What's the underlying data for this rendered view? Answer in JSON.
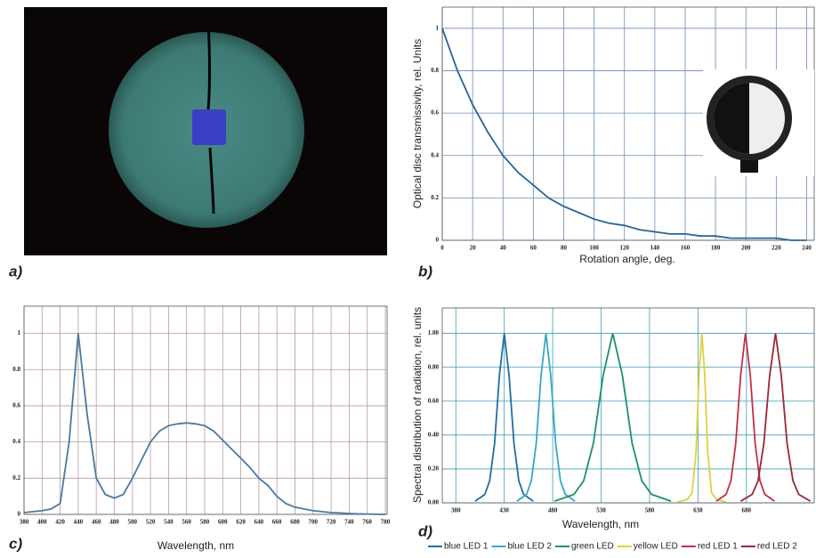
{
  "image_panel": {
    "label": "a)"
  },
  "chart_data": [
    {
      "type": "line",
      "label": "b)",
      "xlabel": "Rotation angle, deg.",
      "ylabel": "Optical disc transmissivity, rel. Units",
      "x": [
        0,
        10,
        20,
        30,
        40,
        50,
        60,
        70,
        80,
        90,
        100,
        110,
        120,
        130,
        140,
        150,
        160,
        170,
        180,
        190,
        200,
        210,
        220,
        230,
        240
      ],
      "values": [
        1,
        0.8,
        0.64,
        0.51,
        0.4,
        0.32,
        0.26,
        0.2,
        0.16,
        0.13,
        0.1,
        0.08,
        0.07,
        0.05,
        0.04,
        0.03,
        0.03,
        0.02,
        0.02,
        0.01,
        0.01,
        0.01,
        0.01,
        0,
        0
      ],
      "color": "#2a6496",
      "xlim": [
        0,
        245
      ],
      "ylim": [
        0,
        1.1
      ],
      "xticks": [
        0,
        20,
        40,
        60,
        80,
        100,
        120,
        140,
        160,
        180,
        200,
        220,
        240
      ],
      "yticks": [
        0,
        0.2,
        0.4,
        0.6,
        0.8,
        1
      ],
      "grid": true
    },
    {
      "type": "line",
      "label": "c)",
      "xlabel": "Wavelength, nm",
      "x": [
        380,
        390,
        400,
        410,
        420,
        430,
        440,
        450,
        460,
        470,
        480,
        490,
        500,
        510,
        520,
        530,
        540,
        550,
        560,
        570,
        580,
        590,
        600,
        610,
        620,
        630,
        640,
        650,
        660,
        670,
        680,
        690,
        700,
        710,
        720,
        730,
        740,
        750,
        760,
        770,
        780
      ],
      "values": [
        0.01,
        0.015,
        0.02,
        0.03,
        0.06,
        0.4,
        1.0,
        0.55,
        0.2,
        0.11,
        0.09,
        0.11,
        0.2,
        0.3,
        0.4,
        0.46,
        0.49,
        0.5,
        0.505,
        0.5,
        0.49,
        0.46,
        0.41,
        0.36,
        0.31,
        0.26,
        0.2,
        0.16,
        0.1,
        0.06,
        0.04,
        0.03,
        0.02,
        0.015,
        0.01,
        0.008,
        0.005,
        0.003,
        0.002,
        0.001,
        0
      ],
      "color": "#4a7aa0",
      "xlim": [
        380,
        782
      ],
      "ylim": [
        0,
        1.15
      ],
      "xticks": [
        380,
        400,
        420,
        440,
        460,
        480,
        500,
        520,
        540,
        560,
        580,
        600,
        620,
        640,
        660,
        680,
        700,
        720,
        740,
        760,
        780
      ],
      "yticks": [
        0,
        0.2,
        0.4,
        0.6,
        0.8,
        1
      ],
      "grid": true
    },
    {
      "type": "line",
      "label": "d)",
      "xlabel": "Wavelength, nm",
      "ylabel": "Spectral distribution of radiation, rel. units",
      "series": [
        {
          "name": "blue LED 1",
          "color": "#1f6fa0",
          "x": [
            400,
            410,
            415,
            420,
            425,
            430,
            435,
            440,
            445,
            450,
            460
          ],
          "values": [
            0.01,
            0.05,
            0.13,
            0.35,
            0.75,
            1,
            0.75,
            0.35,
            0.13,
            0.05,
            0.01
          ]
        },
        {
          "name": "blue LED 2",
          "color": "#3aa6c8",
          "x": [
            443,
            453,
            458,
            463,
            468,
            473,
            478,
            483,
            488,
            493,
            503
          ],
          "values": [
            0.01,
            0.05,
            0.13,
            0.35,
            0.75,
            1,
            0.75,
            0.35,
            0.13,
            0.05,
            0.01
          ]
        },
        {
          "name": "green LED",
          "color": "#1e8f6e",
          "x": [
            482,
            502,
            512,
            522,
            532,
            542,
            552,
            562,
            572,
            582,
            602
          ],
          "values": [
            0.01,
            0.05,
            0.13,
            0.35,
            0.75,
            1,
            0.75,
            0.35,
            0.13,
            0.05,
            0.01
          ]
        },
        {
          "name": "yellow LED",
          "color": "#e0d040",
          "x": [
            609,
            619,
            624,
            628,
            631,
            634,
            637,
            640,
            644,
            649,
            659
          ],
          "values": [
            0.005,
            0.02,
            0.06,
            0.3,
            0.75,
            1,
            0.75,
            0.3,
            0.06,
            0.02,
            0.005
          ]
        },
        {
          "name": "red LED 1",
          "color": "#c0304a",
          "x": [
            649,
            659,
            664,
            669,
            674,
            679,
            684,
            689,
            694,
            699,
            709
          ],
          "values": [
            0.01,
            0.05,
            0.13,
            0.35,
            0.75,
            1,
            0.75,
            0.35,
            0.13,
            0.05,
            0.01
          ]
        },
        {
          "name": "red LED 2",
          "color": "#9a2838",
          "x": [
            674,
            686,
            692,
            698,
            704,
            710,
            716,
            722,
            728,
            734,
            746
          ],
          "values": [
            0.01,
            0.05,
            0.13,
            0.35,
            0.75,
            1,
            0.75,
            0.35,
            0.13,
            0.05,
            0.01
          ]
        }
      ],
      "xlim": [
        366,
        750
      ],
      "ylim": [
        0,
        1.15
      ],
      "xticks": [
        380,
        430,
        480,
        530,
        580,
        630,
        680
      ],
      "yticks": [
        {
          "value": 0,
          "label": "0.00"
        },
        {
          "value": 0.2,
          "label": "0.20"
        },
        {
          "value": 0.4,
          "label": "0.40"
        },
        {
          "value": 0.6,
          "label": "0.60"
        },
        {
          "value": 0.8,
          "label": "0.80"
        },
        {
          "value": 1,
          "label": "1.00"
        }
      ],
      "grid": true,
      "legend": "bottom"
    }
  ]
}
